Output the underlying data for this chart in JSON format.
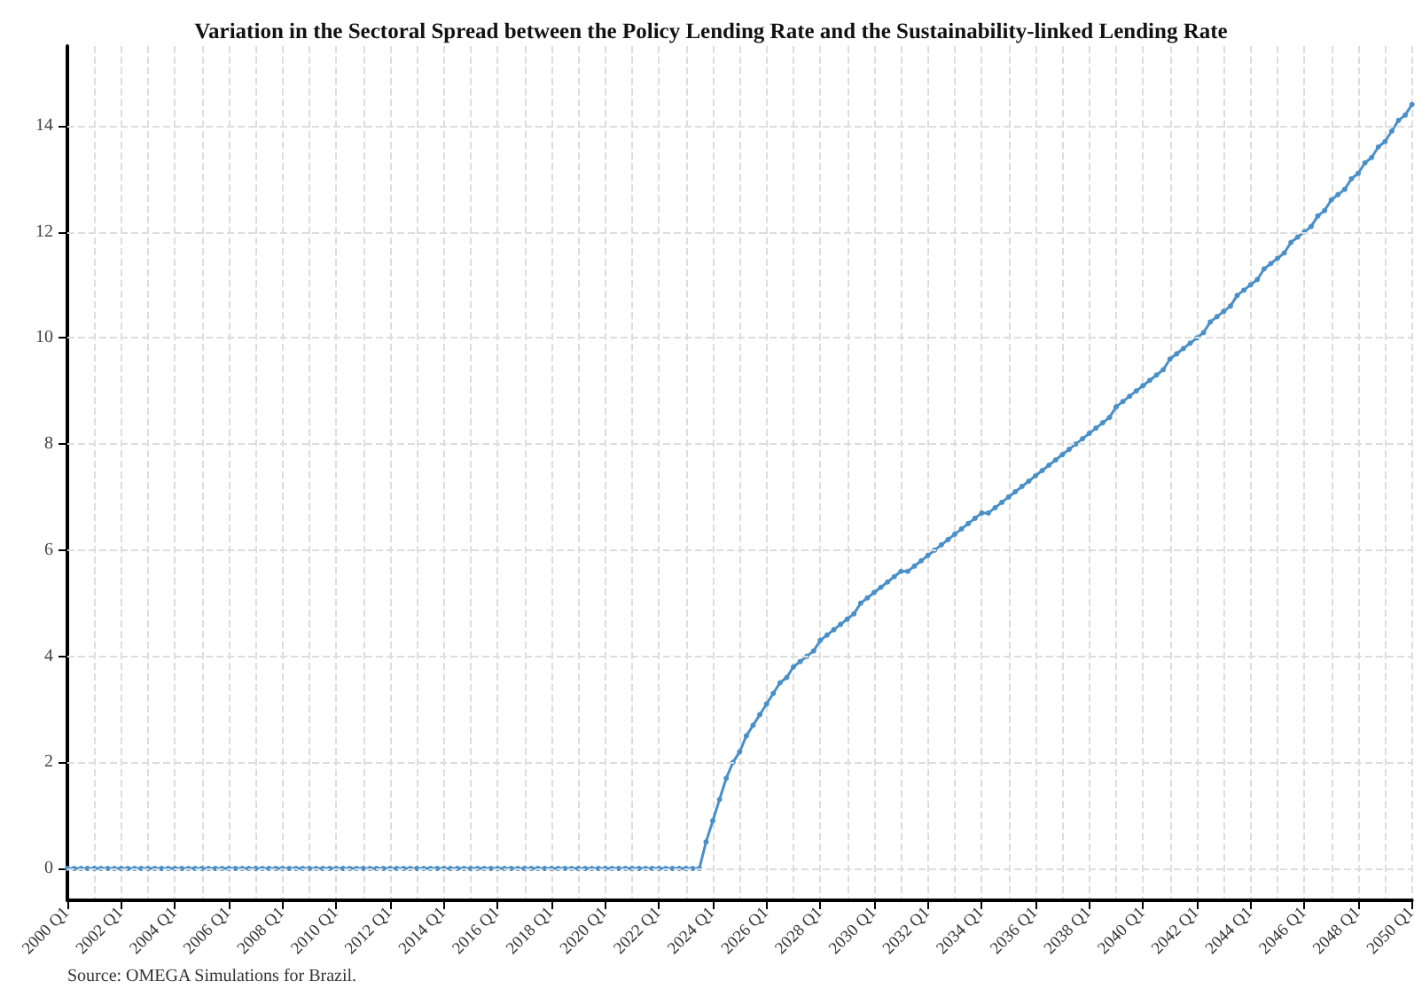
{
  "chart_data": {
    "type": "line",
    "title": "Variation in the Sectoral Spread between the Policy Lending Rate and the Sustainability-linked Lending Rate",
    "annotations": [
      "Source: OMEGA Simulations for Brazil."
    ],
    "categories": [
      "2000 Q1",
      null,
      null,
      null,
      null,
      null,
      null,
      null,
      "2002 Q1",
      null,
      null,
      null,
      null,
      null,
      null,
      null,
      "2004 Q1",
      null,
      null,
      null,
      null,
      null,
      null,
      null,
      "2006 Q1",
      null,
      null,
      null,
      null,
      null,
      null,
      null,
      "2008 Q1",
      null,
      null,
      null,
      null,
      null,
      null,
      null,
      "2010 Q1",
      null,
      null,
      null,
      null,
      null,
      null,
      null,
      "2012 Q1",
      null,
      null,
      null,
      null,
      null,
      null,
      null,
      "2014 Q1",
      null,
      null,
      null,
      null,
      null,
      null,
      null,
      "2016 Q1",
      null,
      null,
      null,
      null,
      null,
      null,
      null,
      "2018 Q1",
      null,
      null,
      null,
      null,
      null,
      null,
      null,
      "2020 Q1",
      null,
      null,
      null,
      null,
      null,
      null,
      null,
      "2022 Q1",
      null,
      null,
      null,
      null,
      null,
      null,
      null,
      "2024 Q1",
      null,
      null,
      null,
      null,
      null,
      null,
      null,
      "2026 Q1",
      null,
      null,
      null,
      null,
      null,
      null,
      null,
      "2028 Q1",
      null,
      null,
      null,
      null,
      null,
      null,
      null,
      "2030 Q1",
      null,
      null,
      null,
      null,
      null,
      null,
      null,
      "2032 Q1",
      null,
      null,
      null,
      null,
      null,
      null,
      null,
      "2034 Q1",
      null,
      null,
      null,
      null,
      null,
      null,
      null,
      "2036 Q1",
      null,
      null,
      null,
      null,
      null,
      null,
      null,
      "2038 Q1",
      null,
      null,
      null,
      null,
      null,
      null,
      null,
      "2040 Q1",
      null,
      null,
      null,
      null,
      null,
      null,
      null,
      "2042 Q1",
      null,
      null,
      null,
      null,
      null,
      null,
      null,
      "2044 Q1",
      null,
      null,
      null,
      null,
      null,
      null,
      null,
      "2046 Q1",
      null,
      null,
      null,
      null,
      null,
      null,
      null,
      "2048 Q1",
      null,
      null,
      null,
      null,
      null,
      null,
      null,
      "2050 Q1"
    ],
    "series": [
      {
        "color": "#4a90c8",
        "values": [
          0,
          0,
          0,
          0,
          0,
          0,
          0,
          0,
          0,
          0,
          0,
          0,
          0,
          0,
          0,
          0,
          0,
          0,
          0,
          0,
          0,
          0,
          0,
          0,
          0,
          0,
          0,
          0,
          0,
          0,
          0,
          0,
          0,
          0,
          0,
          0,
          0,
          0,
          0,
          0,
          0,
          0,
          0,
          0,
          0,
          0,
          0,
          0,
          0,
          0,
          0,
          0,
          0,
          0,
          0,
          0,
          0,
          0,
          0,
          0,
          0,
          0,
          0,
          0,
          0,
          0,
          0,
          0,
          0,
          0,
          0,
          0,
          0,
          0,
          0,
          0,
          0,
          0,
          0,
          0,
          0,
          0,
          0,
          0,
          0,
          0,
          0,
          0,
          0,
          0,
          0,
          0,
          0,
          0,
          0,
          0.5,
          0.9,
          1.3,
          1.7,
          2.0,
          2.2,
          2.5,
          2.7,
          2.9,
          3.1,
          3.3,
          3.5,
          3.6,
          3.8,
          3.9,
          4.0,
          4.1,
          4.3,
          4.4,
          4.5,
          4.6,
          4.7,
          4.8,
          5.0,
          5.1,
          5.2,
          5.3,
          5.4,
          5.5,
          5.6,
          5.6,
          5.7,
          5.8,
          5.9,
          6.0,
          6.1,
          6.2,
          6.3,
          6.4,
          6.5,
          6.6,
          6.7,
          6.7,
          6.8,
          6.9,
          7.0,
          7.1,
          7.2,
          7.3,
          7.4,
          7.5,
          7.6,
          7.7,
          7.8,
          7.9,
          8.0,
          8.1,
          8.2,
          8.3,
          8.4,
          8.5,
          8.7,
          8.8,
          8.9,
          9.0,
          9.1,
          9.2,
          9.3,
          9.4,
          9.6,
          9.7,
          9.8,
          9.9,
          10.0,
          10.1,
          10.3,
          10.4,
          10.5,
          10.6,
          10.8,
          10.9,
          11.0,
          11.1,
          11.3,
          11.4,
          11.5,
          11.6,
          11.8,
          11.9,
          12.0,
          12.1,
          12.3,
          12.4,
          12.6,
          12.7,
          12.8,
          13.0,
          13.1,
          13.3,
          13.4,
          13.6,
          13.7,
          13.9,
          14.1,
          14.2,
          14.4
        ]
      }
    ],
    "ylim": [
      -0.6,
      15.5
    ],
    "yticks": [
      0,
      2,
      4,
      6,
      8,
      10,
      12,
      14
    ],
    "grid": true,
    "marker": "circle",
    "line_style": "solid"
  }
}
